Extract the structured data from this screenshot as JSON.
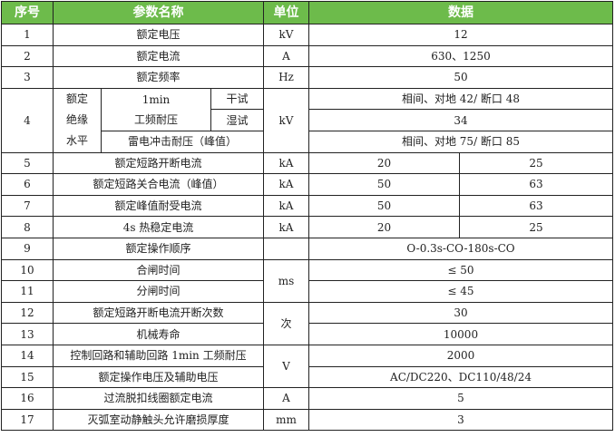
{
  "header": {
    "no": "序号",
    "name": "参数名称",
    "unit": "单位",
    "data": "数据"
  },
  "header_color": "#6dbb4b",
  "rows": [
    {
      "no": "1",
      "name": "额定电压",
      "unit": "kV",
      "value": "12"
    },
    {
      "no": "2",
      "name": "额定电流",
      "unit": "A",
      "value": "630、1250"
    },
    {
      "no": "3",
      "name": "额定频率",
      "unit": "Hz",
      "value": "50"
    },
    {
      "no": "4",
      "group": "额定\n绝缘\n水平",
      "sub1": "1min",
      "sub2": "工频耐压",
      "dry": "干试",
      "wet": "湿试",
      "lightning": "雷电冲击耐压（峰值）",
      "unit": "kV",
      "dry_value": "相间、对地 42/ 断口 48",
      "wet_value": "34",
      "lightning_value": "相间、对地 75/ 断口 85"
    },
    {
      "no": "5",
      "name": "额定短路开断电流",
      "unit": "kA",
      "v1": "20",
      "v2": "25"
    },
    {
      "no": "6",
      "name": "额定短路关合电流（峰值）",
      "unit": "kA",
      "v1": "50",
      "v2": "63"
    },
    {
      "no": "7",
      "name": "额定峰值耐受电流",
      "unit": "kA",
      "v1": "50",
      "v2": "63"
    },
    {
      "no": "8",
      "name": "4s 热稳定电流",
      "unit": "kA",
      "v1": "20",
      "v2": "25"
    },
    {
      "no": "9",
      "name": "额定操作顺序",
      "unit": "",
      "value": "O-0.3s-CO-180s-CO"
    },
    {
      "no": "10",
      "name": "合闸时间",
      "unit": "ms",
      "value": "≤ 50"
    },
    {
      "no": "11",
      "name": "分闸时间",
      "value": "≤ 45"
    },
    {
      "no": "12",
      "name": "额定短路开断电流开断次数",
      "unit": "次",
      "value": "30"
    },
    {
      "no": "13",
      "name": "机械寿命",
      "value": "10000"
    },
    {
      "no": "14",
      "name": "控制回路和辅助回路 1min 工频耐压",
      "unit": "V",
      "value": "2000"
    },
    {
      "no": "15",
      "name": "额定操作电压及辅助电压",
      "value": "AC/DC220、DC110/48/24"
    },
    {
      "no": "16",
      "name": "过流脱扣线圈额定电流",
      "unit": "A",
      "value": "5"
    },
    {
      "no": "17",
      "name": "灭弧室动静触头允许磨损厚度",
      "unit": "mm",
      "value": "3"
    }
  ]
}
